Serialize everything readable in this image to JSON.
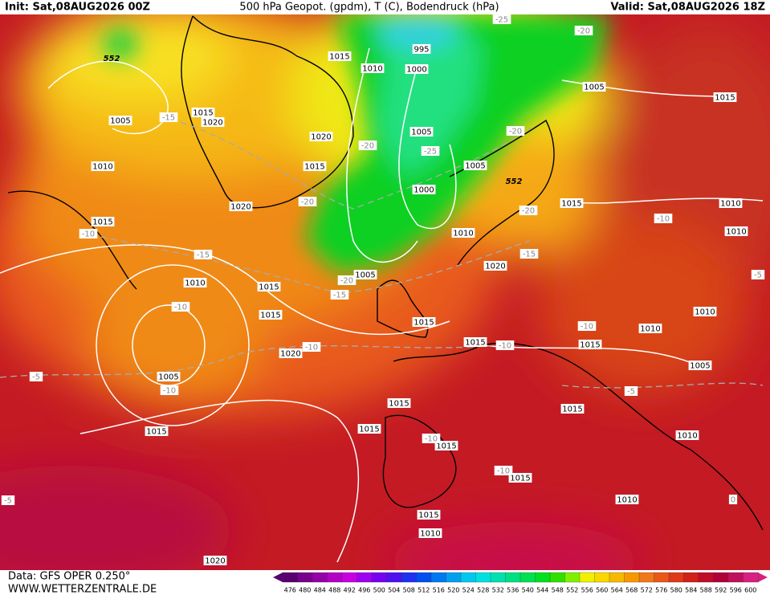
{
  "header": {
    "init": "Init: Sat,08AUG2026 00Z",
    "title": "500 hPa Geopot. (gpdm), T (C), Bodendruck (hPa)",
    "valid": "Valid: Sat,08AUG2026 18Z"
  },
  "footer": {
    "data": "Data: GFS OPER 0.250°",
    "site": "WWW.WETTERZENTRALE.DE"
  },
  "isobar_labels": [
    "1005",
    "1015",
    "1020",
    "1010",
    "1015",
    "1020",
    "1015",
    "1020",
    "1015",
    "1010",
    "995",
    "1000",
    "1005",
    "1000",
    "1005",
    "1010",
    "1020",
    "1005",
    "1015",
    "1010",
    "1015",
    "1015",
    "1020",
    "1015",
    "1005",
    "1015",
    "1015",
    "1015",
    "1015",
    "1015",
    "1015",
    "1010",
    "1020",
    "1005",
    "1015",
    "1015",
    "1010",
    "1010",
    "1010",
    "1010",
    "1015",
    "1015",
    "1005",
    "1010",
    "1010"
  ],
  "temperature_labels": [
    "-25",
    "-20",
    "-15",
    "-20",
    "-25",
    "-20",
    "-20",
    "-20",
    "-10",
    "-15",
    "-15",
    "-10",
    "-20",
    "-15",
    "-10",
    "-10",
    "-10",
    "-10",
    "-5",
    "-10",
    "-5",
    "-10",
    "-10",
    "-5",
    "-5",
    "0"
  ],
  "geopotential_labels": [
    "552",
    "552"
  ],
  "legend": {
    "labels": [
      "476",
      "480",
      "484",
      "488",
      "492",
      "496",
      "500",
      "504",
      "508",
      "512",
      "516",
      "520",
      "524",
      "528",
      "532",
      "536",
      "540",
      "544",
      "548",
      "552",
      "556",
      "560",
      "564",
      "568",
      "572",
      "576",
      "580",
      "584",
      "588",
      "592",
      "596",
      "600"
    ]
  }
}
